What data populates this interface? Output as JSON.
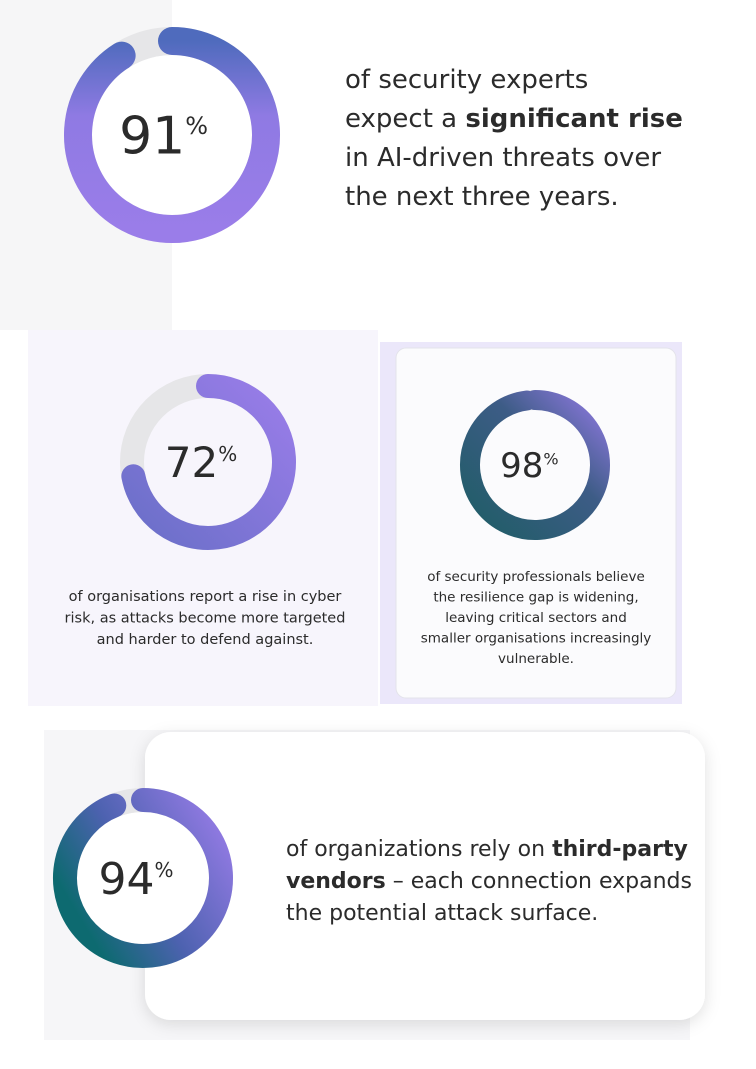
{
  "stats": [
    {
      "value": 91,
      "unit": "%",
      "lines": [
        [
          {
            "text": "of security experts"
          }
        ],
        [
          {
            "text": "expect a "
          },
          {
            "text": "significant rise",
            "bold": true
          }
        ],
        [
          {
            "text": "in AI-driven threats over"
          }
        ],
        [
          {
            "text": "the next three years."
          }
        ]
      ]
    },
    {
      "value": 72,
      "unit": "%",
      "lines": [
        [
          {
            "text": "of organisations report a rise in cyber"
          }
        ],
        [
          {
            "text": "risk, as attacks become more targeted"
          }
        ],
        [
          {
            "text": "and harder to defend against."
          }
        ]
      ]
    },
    {
      "value": 98,
      "unit": "%",
      "lines": [
        [
          {
            "text": "of security professionals believe"
          }
        ],
        [
          {
            "text": "the resilience gap is widening,"
          }
        ],
        [
          {
            "text": "leaving critical sectors and"
          }
        ],
        [
          {
            "text": "smaller organisations increasingly"
          }
        ],
        [
          {
            "text": "vulnerable."
          }
        ]
      ]
    },
    {
      "value": 94,
      "unit": "%",
      "lines": [
        [
          {
            "text": "of organizations rely on "
          },
          {
            "text": "third-party",
            "bold": true
          }
        ],
        [
          {
            "text": "vendors",
            "bold": true
          },
          {
            "text": " – each connection expands"
          }
        ],
        [
          {
            "text": "the potential attack surface."
          }
        ]
      ]
    }
  ]
}
